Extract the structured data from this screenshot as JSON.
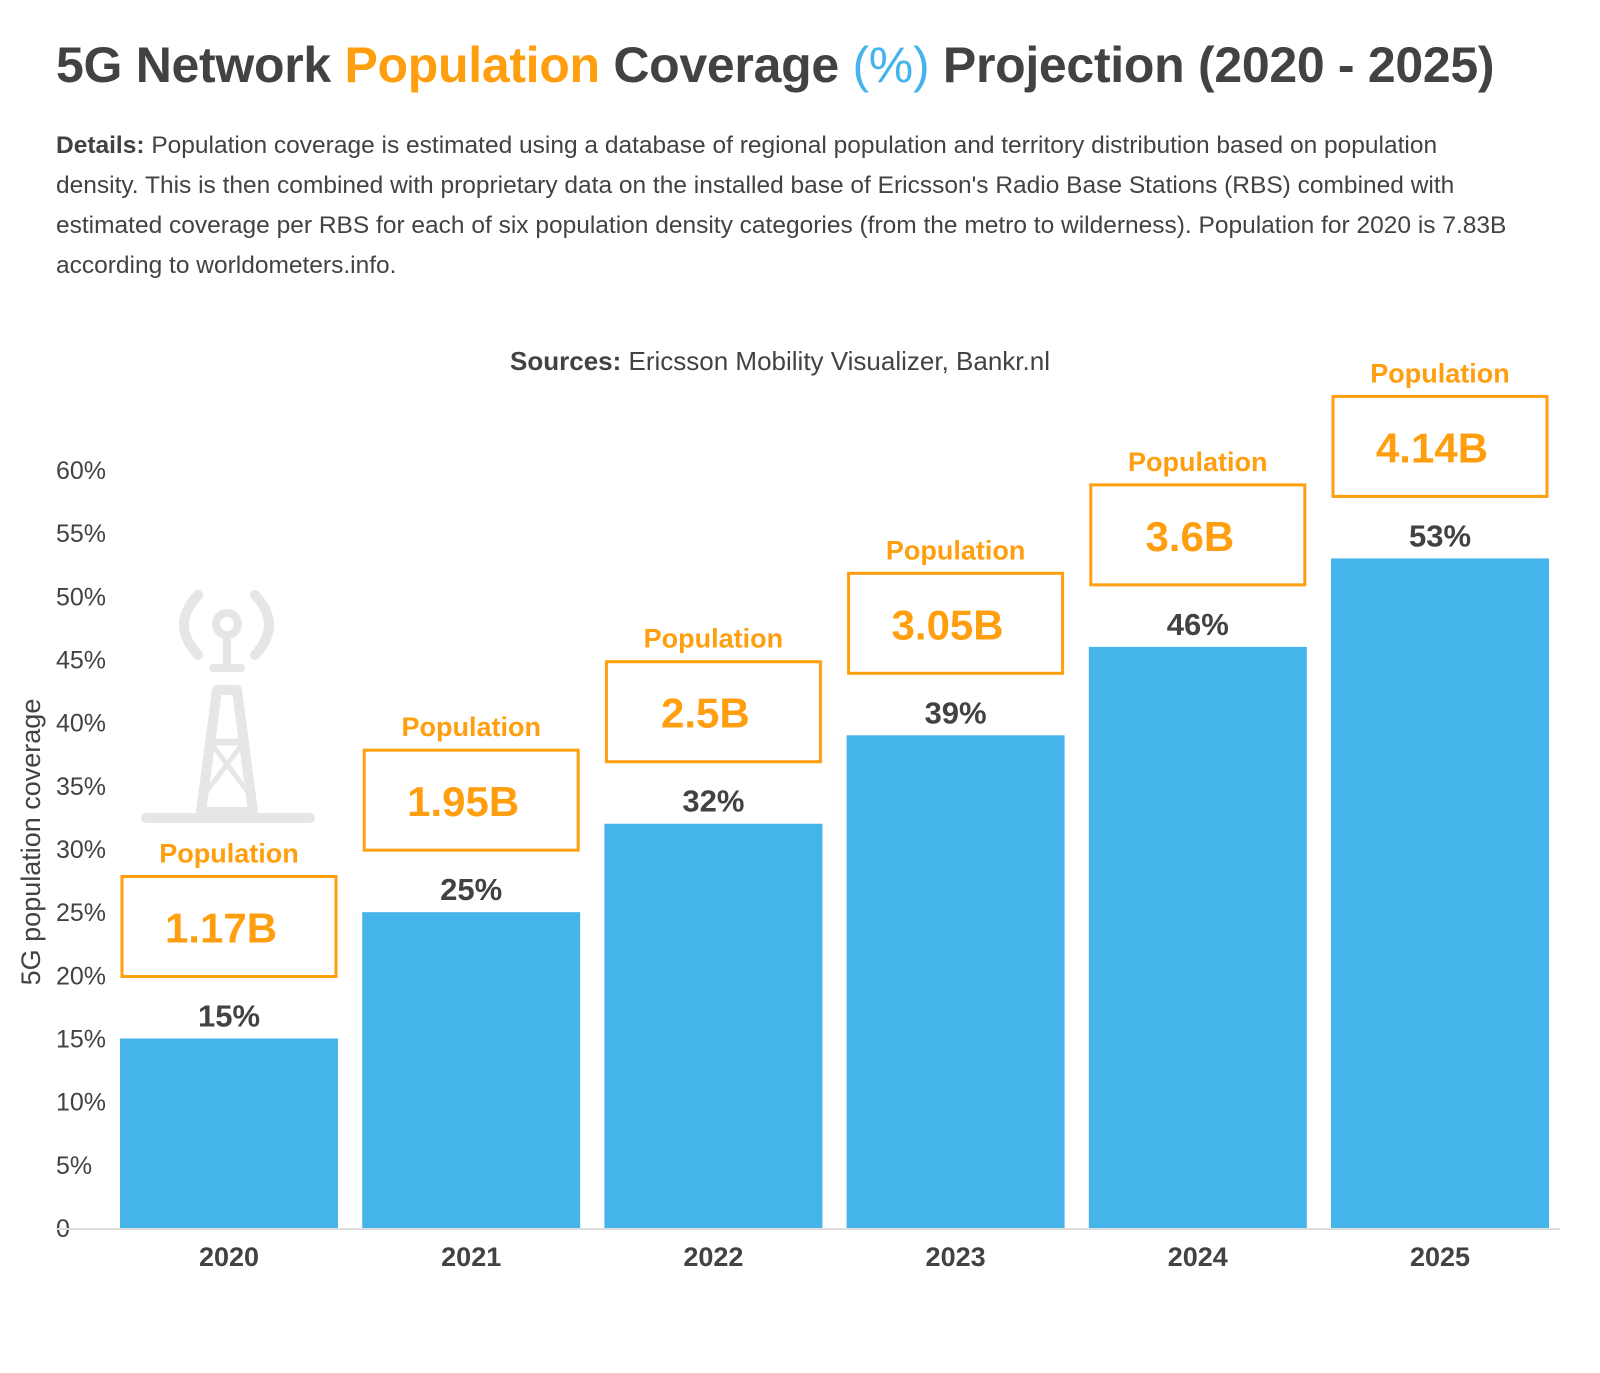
{
  "header": {
    "title_part1": "5G Network ",
    "title_part2": "Population",
    "title_part3": " Coverage ",
    "title_part4": "(%)",
    "title_part5": " Projection (2020 - 2025)",
    "details_label": "Details:",
    "details_text": " Population coverage is estimated using a database of regional population and territory distribution based on population density. This is then combined with proprietary data on the installed base of Ericsson's Radio Base Stations (RBS) combined with estimated coverage per RBS for each of six population density categories (from the metro to wilderness). Population for 2020 is 7.83B according to worldometers.info.",
    "sources_label": "Sources:",
    "sources_text": " Ericsson Mobility Visualizer, Bankr.nl"
  },
  "colors": {
    "bar": "#45B4EA",
    "accent": "#FF9E0F",
    "text": "#424242",
    "axis": "#dddddd",
    "icon": "#e6e6e6"
  },
  "icon": "radio-tower-icon",
  "chart_data": {
    "type": "bar",
    "categories": [
      "2020",
      "2021",
      "2022",
      "2023",
      "2024",
      "2025"
    ],
    "values": [
      15,
      25,
      32,
      39,
      46,
      53
    ],
    "value_labels": [
      "15%",
      "25%",
      "32%",
      "39%",
      "46%",
      "53%"
    ],
    "annotation_label": "Population",
    "annotations": [
      "1.17B",
      "1.95B",
      "2.5B",
      "3.05B",
      "3.6B",
      "4.14B"
    ],
    "ylabel": "5G population coverage",
    "ylim": [
      0,
      60
    ],
    "yticks": [
      0,
      5,
      10,
      15,
      20,
      25,
      30,
      35,
      40,
      45,
      50,
      55,
      60
    ],
    "ytick_labels": [
      "0",
      "5%",
      "10%",
      "15%",
      "20%",
      "25%",
      "30%",
      "35%",
      "40%",
      "45%",
      "50%",
      "55%",
      "60%"
    ],
    "grid": false,
    "legend": "none"
  }
}
